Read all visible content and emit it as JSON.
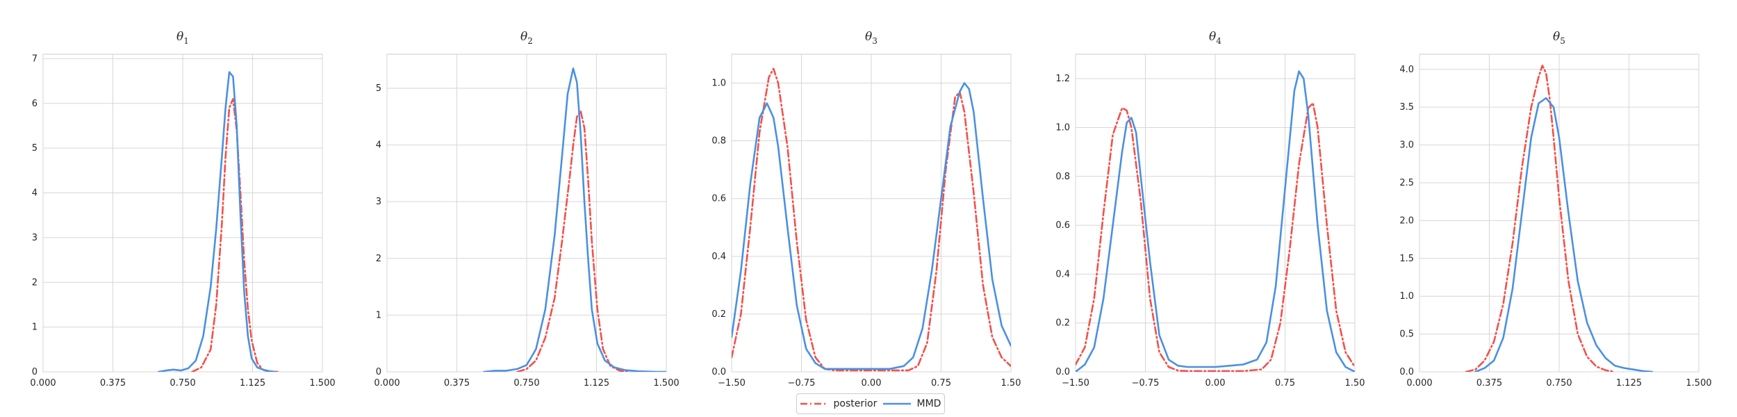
{
  "chart_data": [
    {
      "type": "line",
      "title": "θ1",
      "xlim": [
        0.0,
        1.5
      ],
      "ylim": [
        0,
        7.1
      ],
      "xticks": [
        "0.000",
        "0.375",
        "0.750",
        "1.125",
        "1.500"
      ],
      "yticks": [
        "0",
        "1",
        "2",
        "3",
        "4",
        "5",
        "6",
        "7"
      ],
      "grid": true,
      "series": [
        {
          "name": "posterior",
          "color": "#f4504a",
          "style": "dashdot",
          "x": [
            0.8,
            0.85,
            0.9,
            0.93,
            0.96,
            0.98,
            1.0,
            1.02,
            1.04,
            1.06,
            1.08,
            1.1,
            1.12,
            1.15,
            1.18,
            1.22,
            1.26
          ],
          "y": [
            0.0,
            0.1,
            0.5,
            1.5,
            3.3,
            4.8,
            5.9,
            6.1,
            5.4,
            4.0,
            2.5,
            1.4,
            0.7,
            0.2,
            0.05,
            0.01,
            0.0
          ]
        },
        {
          "name": "MMD",
          "color": "#4a90e2",
          "style": "solid",
          "x": [
            0.62,
            0.66,
            0.7,
            0.74,
            0.78,
            0.82,
            0.86,
            0.9,
            0.93,
            0.96,
            0.98,
            1.0,
            1.02,
            1.04,
            1.06,
            1.08,
            1.1,
            1.12,
            1.15,
            1.2,
            1.25
          ],
          "y": [
            0.0,
            0.03,
            0.05,
            0.03,
            0.08,
            0.25,
            0.8,
            1.9,
            3.2,
            4.8,
            5.9,
            6.7,
            6.6,
            5.5,
            3.5,
            1.8,
            0.8,
            0.3,
            0.1,
            0.02,
            0.0
          ]
        }
      ]
    },
    {
      "type": "line",
      "title": "θ2",
      "xlim": [
        0.0,
        1.5
      ],
      "ylim": [
        0,
        5.6
      ],
      "xticks": [
        "0.000",
        "0.375",
        "0.750",
        "1.125",
        "1.500"
      ],
      "yticks": [
        "0",
        "1",
        "2",
        "3",
        "4",
        "5"
      ],
      "grid": true,
      "series": [
        {
          "name": "posterior",
          "color": "#f4504a",
          "style": "dashdot",
          "x": [
            0.7,
            0.75,
            0.8,
            0.85,
            0.9,
            0.94,
            0.98,
            1.0,
            1.02,
            1.04,
            1.06,
            1.08,
            1.1,
            1.13,
            1.16,
            1.2,
            1.25,
            1.3
          ],
          "y": [
            0.0,
            0.05,
            0.2,
            0.6,
            1.3,
            2.3,
            3.4,
            4.0,
            4.5,
            4.6,
            4.3,
            3.4,
            2.3,
            1.1,
            0.4,
            0.1,
            0.02,
            0.0
          ]
        },
        {
          "name": "MMD",
          "color": "#4a90e2",
          "style": "solid",
          "x": [
            0.52,
            0.58,
            0.64,
            0.7,
            0.75,
            0.8,
            0.85,
            0.9,
            0.94,
            0.97,
            1.0,
            1.02,
            1.04,
            1.06,
            1.08,
            1.1,
            1.13,
            1.17,
            1.22,
            1.28,
            1.35,
            1.45,
            1.5
          ],
          "y": [
            0.0,
            0.02,
            0.02,
            0.05,
            0.12,
            0.4,
            1.1,
            2.4,
            3.8,
            4.9,
            5.35,
            5.1,
            4.2,
            3.0,
            2.0,
            1.1,
            0.5,
            0.2,
            0.08,
            0.03,
            0.01,
            0.0,
            0.0
          ]
        }
      ]
    },
    {
      "type": "line",
      "title": "θ3",
      "xlim": [
        -1.5,
        1.5
      ],
      "ylim": [
        0,
        1.1
      ],
      "xticks": [
        "−1.50",
        "−0.75",
        "0.00",
        "0.75",
        "1.50"
      ],
      "yticks": [
        "0.0",
        "0.2",
        "0.4",
        "0.6",
        "0.8",
        "1.0"
      ],
      "grid": true,
      "series": [
        {
          "name": "posterior",
          "color": "#f4504a",
          "style": "dashdot",
          "x": [
            -1.5,
            -1.4,
            -1.3,
            -1.2,
            -1.1,
            -1.05,
            -1.0,
            -0.9,
            -0.8,
            -0.7,
            -0.6,
            -0.5,
            -0.4,
            -0.2,
            0.0,
            0.2,
            0.4,
            0.5,
            0.6,
            0.7,
            0.8,
            0.9,
            0.95,
            1.0,
            1.1,
            1.2,
            1.3,
            1.4,
            1.5
          ],
          "y": [
            0.05,
            0.2,
            0.5,
            0.83,
            1.02,
            1.05,
            1.0,
            0.78,
            0.45,
            0.18,
            0.05,
            0.01,
            0.005,
            0.005,
            0.005,
            0.005,
            0.005,
            0.02,
            0.1,
            0.35,
            0.7,
            0.95,
            0.97,
            0.9,
            0.62,
            0.3,
            0.12,
            0.05,
            0.02
          ]
        },
        {
          "name": "MMD",
          "color": "#4a90e2",
          "style": "solid",
          "x": [
            -1.5,
            -1.4,
            -1.3,
            -1.2,
            -1.12,
            -1.05,
            -1.0,
            -0.9,
            -0.8,
            -0.7,
            -0.6,
            -0.5,
            -0.4,
            -0.2,
            0.0,
            0.2,
            0.35,
            0.45,
            0.55,
            0.65,
            0.75,
            0.85,
            0.95,
            1.0,
            1.05,
            1.1,
            1.2,
            1.3,
            1.4,
            1.5
          ],
          "y": [
            0.12,
            0.35,
            0.65,
            0.88,
            0.93,
            0.88,
            0.78,
            0.5,
            0.23,
            0.08,
            0.03,
            0.01,
            0.01,
            0.01,
            0.01,
            0.01,
            0.02,
            0.05,
            0.15,
            0.35,
            0.6,
            0.85,
            0.97,
            1.0,
            0.98,
            0.9,
            0.6,
            0.32,
            0.16,
            0.09
          ]
        }
      ]
    },
    {
      "type": "line",
      "title": "θ4",
      "xlim": [
        -1.5,
        1.5
      ],
      "ylim": [
        0,
        1.3
      ],
      "xticks": [
        "−1.50",
        "−0.75",
        "0.00",
        "0.75",
        "1.50"
      ],
      "yticks": [
        "0.0",
        "0.2",
        "0.4",
        "0.6",
        "0.8",
        "1.0",
        "1.2"
      ],
      "grid": true,
      "series": [
        {
          "name": "posterior",
          "color": "#f4504a",
          "style": "dashdot",
          "x": [
            -1.5,
            -1.4,
            -1.3,
            -1.2,
            -1.1,
            -1.0,
            -0.95,
            -0.9,
            -0.8,
            -0.7,
            -0.6,
            -0.5,
            -0.4,
            -0.3,
            0.0,
            0.3,
            0.5,
            0.6,
            0.7,
            0.8,
            0.9,
            1.0,
            1.05,
            1.1,
            1.2,
            1.3,
            1.4,
            1.5
          ],
          "y": [
            0.03,
            0.1,
            0.3,
            0.65,
            0.97,
            1.08,
            1.07,
            1.0,
            0.7,
            0.3,
            0.08,
            0.02,
            0.005,
            0.003,
            0.003,
            0.003,
            0.01,
            0.05,
            0.2,
            0.5,
            0.85,
            1.08,
            1.1,
            1.0,
            0.6,
            0.25,
            0.08,
            0.02
          ]
        },
        {
          "name": "MMD",
          "color": "#4a90e2",
          "style": "solid",
          "x": [
            -1.5,
            -1.4,
            -1.3,
            -1.2,
            -1.1,
            -1.0,
            -0.95,
            -0.9,
            -0.85,
            -0.8,
            -0.7,
            -0.6,
            -0.5,
            -0.4,
            -0.3,
            0.0,
            0.3,
            0.45,
            0.55,
            0.65,
            0.75,
            0.85,
            0.9,
            0.95,
            1.0,
            1.1,
            1.2,
            1.3,
            1.4,
            1.5
          ],
          "y": [
            0.0,
            0.03,
            0.1,
            0.3,
            0.6,
            0.9,
            1.02,
            1.04,
            0.98,
            0.8,
            0.45,
            0.15,
            0.05,
            0.025,
            0.02,
            0.02,
            0.03,
            0.05,
            0.12,
            0.35,
            0.75,
            1.15,
            1.23,
            1.2,
            1.05,
            0.6,
            0.25,
            0.08,
            0.02,
            0.0
          ]
        }
      ]
    },
    {
      "type": "line",
      "title": "θ5",
      "xlim": [
        0.0,
        1.5
      ],
      "ylim": [
        0,
        4.2
      ],
      "xticks": [
        "0.000",
        "0.375",
        "0.750",
        "1.125",
        "1.500"
      ],
      "yticks": [
        "0.0",
        "0.5",
        "1.0",
        "1.5",
        "2.0",
        "2.5",
        "3.0",
        "3.5",
        "4.0"
      ],
      "grid": true,
      "series": [
        {
          "name": "posterior",
          "color": "#f4504a",
          "style": "dashdot",
          "x": [
            0.25,
            0.3,
            0.35,
            0.4,
            0.45,
            0.5,
            0.55,
            0.6,
            0.64,
            0.66,
            0.68,
            0.7,
            0.72,
            0.75,
            0.8,
            0.85,
            0.9,
            0.95,
            1.0,
            1.05
          ],
          "y": [
            0.0,
            0.03,
            0.15,
            0.4,
            0.9,
            1.7,
            2.7,
            3.5,
            3.9,
            4.05,
            3.95,
            3.6,
            3.1,
            2.3,
            1.2,
            0.5,
            0.2,
            0.07,
            0.02,
            0.0
          ]
        },
        {
          "name": "MMD",
          "color": "#4a90e2",
          "style": "solid",
          "x": [
            0.3,
            0.35,
            0.4,
            0.45,
            0.5,
            0.55,
            0.6,
            0.64,
            0.68,
            0.72,
            0.75,
            0.8,
            0.85,
            0.9,
            0.95,
            1.0,
            1.05,
            1.1,
            1.15,
            1.2,
            1.25
          ],
          "y": [
            0.0,
            0.05,
            0.15,
            0.45,
            1.1,
            2.1,
            3.1,
            3.55,
            3.62,
            3.5,
            3.1,
            2.1,
            1.2,
            0.65,
            0.35,
            0.18,
            0.08,
            0.05,
            0.03,
            0.01,
            0.0
          ]
        }
      ]
    }
  ],
  "legend": {
    "items": [
      {
        "label": "posterior",
        "color": "#f4504a",
        "style": "dashdot"
      },
      {
        "label": "MMD",
        "color": "#4a90e2",
        "style": "solid"
      }
    ]
  }
}
